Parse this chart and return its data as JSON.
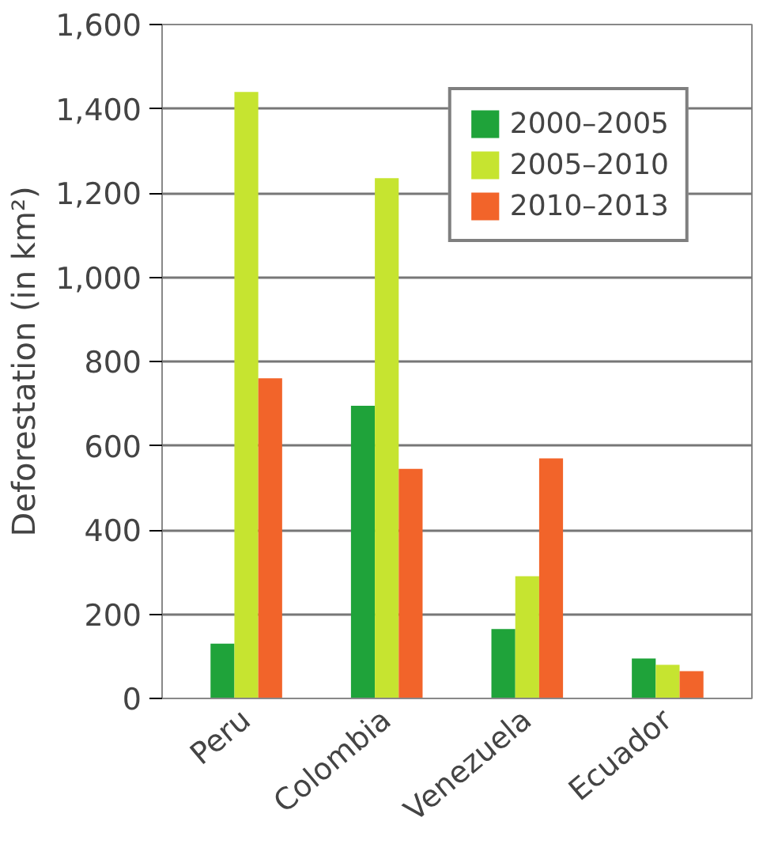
{
  "chart_data": {
    "type": "bar",
    "ylabel": "Deforestation (in km²)",
    "categories": [
      "Peru",
      "Colombia",
      "Venezuela",
      "Ecuador"
    ],
    "series": [
      {
        "name": "2000–2005",
        "color": "#1fa33a",
        "values": [
          130,
          695,
          165,
          95
        ]
      },
      {
        "name": "2005–2010",
        "color": "#c6e430",
        "values": [
          1440,
          1235,
          290,
          80
        ]
      },
      {
        "name": "2010–2013",
        "color": "#f2642a",
        "values": [
          760,
          545,
          570,
          65
        ]
      }
    ],
    "ylim": [
      0,
      1600
    ],
    "yticks": [
      {
        "value": 0,
        "label": "0"
      },
      {
        "value": 200,
        "label": "200"
      },
      {
        "value": 400,
        "label": "400"
      },
      {
        "value": 600,
        "label": "600"
      },
      {
        "value": 800,
        "label": "800"
      },
      {
        "value": 1000,
        "label": "1,000"
      },
      {
        "value": 1200,
        "label": "1,200"
      },
      {
        "value": 1400,
        "label": "1,400"
      },
      {
        "value": 1600,
        "label": "1,600"
      }
    ],
    "grid": "y",
    "legend": "top right"
  }
}
